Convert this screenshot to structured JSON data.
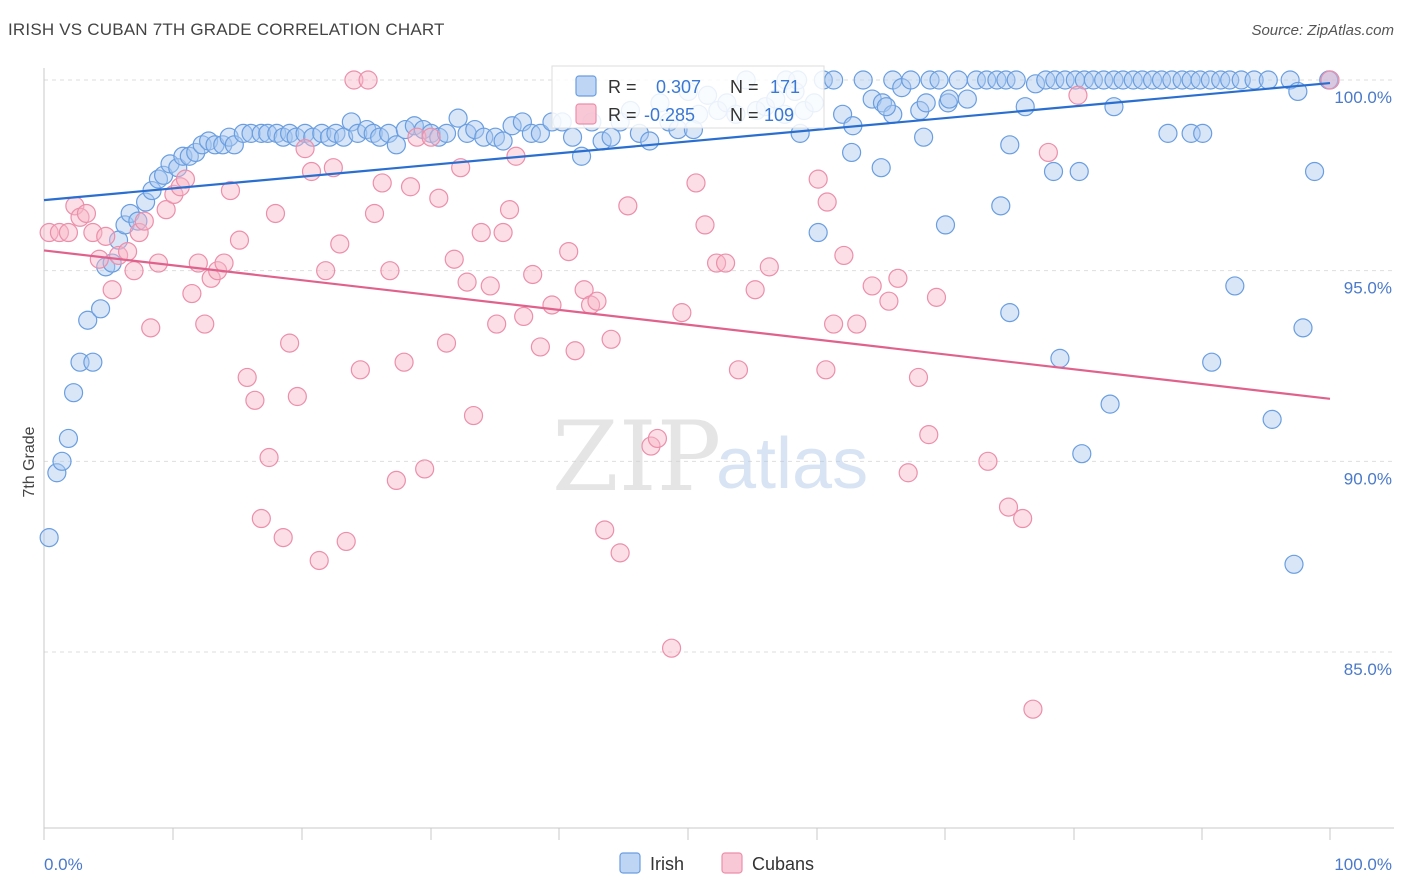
{
  "header": {
    "title": "IRISH VS CUBAN 7TH GRADE CORRELATION CHART",
    "source": "Source: ZipAtlas.com"
  },
  "watermark": {
    "zip": "ZIP",
    "atlas": "atlas"
  },
  "colors": {
    "irish_fill": "#a8c8f0",
    "irish_stroke": "#6a9ee0",
    "irish_line": "#2a6fcf",
    "cubans_fill": "#f6b6c8",
    "cubans_stroke": "#ec8fab",
    "cubans_line": "#e0628c",
    "tick_text": "#4a7ac9"
  },
  "legend_box": {
    "rows": [
      {
        "r_label": "R = ",
        "r_value": "0.307",
        "n_label": "N = ",
        "n_value": "171"
      },
      {
        "r_label": "R = ",
        "r_value": "-0.285",
        "n_label": "N = ",
        "n_value": "109"
      }
    ]
  },
  "chart_data": {
    "type": "scatter",
    "title": "IRISH VS CUBAN 7TH GRADE CORRELATION CHART",
    "xlabel": "",
    "ylabel": "7th Grade",
    "xlim": [
      0,
      100
    ],
    "ylim": [
      80.2,
      100.6
    ],
    "x_tick_labels": [
      "0.0%",
      "100.0%"
    ],
    "y_ticks": [
      85,
      90,
      95,
      100
    ],
    "y_tick_labels": [
      "85.0%",
      "90.0%",
      "95.0%",
      "100.0%"
    ],
    "grid": "horizontal dashed",
    "legend_position": "top-center and bottom",
    "series": [
      {
        "name": "Irish",
        "R": 0.307,
        "N": 171,
        "trend": {
          "x0": 0,
          "y0": 96.85,
          "x1": 100,
          "y1": 99.92
        },
        "points": [
          [
            0.4,
            88
          ],
          [
            1,
            89.7
          ],
          [
            1.4,
            90
          ],
          [
            1.9,
            90.6
          ],
          [
            2.3,
            91.8
          ],
          [
            2.8,
            92.6
          ],
          [
            3.8,
            92.6
          ],
          [
            3.4,
            93.7
          ],
          [
            4.4,
            94
          ],
          [
            4.8,
            95.1
          ],
          [
            5.3,
            95.2
          ],
          [
            5.8,
            95.8
          ],
          [
            6.3,
            96.2
          ],
          [
            6.7,
            96.5
          ],
          [
            7.3,
            96.3
          ],
          [
            7.9,
            96.8
          ],
          [
            8.4,
            97.1
          ],
          [
            8.9,
            97.4
          ],
          [
            9.3,
            97.5
          ],
          [
            9.8,
            97.8
          ],
          [
            10.4,
            97.7
          ],
          [
            10.8,
            98
          ],
          [
            11.3,
            98
          ],
          [
            11.8,
            98.1
          ],
          [
            12.3,
            98.3
          ],
          [
            12.8,
            98.4
          ],
          [
            13.3,
            98.3
          ],
          [
            13.9,
            98.3
          ],
          [
            14.4,
            98.5
          ],
          [
            14.8,
            98.3
          ],
          [
            15.5,
            98.6
          ],
          [
            16.1,
            98.6
          ],
          [
            16.9,
            98.6
          ],
          [
            17.4,
            98.6
          ],
          [
            18.1,
            98.6
          ],
          [
            18.6,
            98.5
          ],
          [
            19.1,
            98.6
          ],
          [
            19.6,
            98.5
          ],
          [
            20.3,
            98.6
          ],
          [
            20.9,
            98.5
          ],
          [
            21.6,
            98.6
          ],
          [
            22.2,
            98.5
          ],
          [
            22.7,
            98.6
          ],
          [
            23.3,
            98.5
          ],
          [
            23.9,
            98.9
          ],
          [
            24.4,
            98.6
          ],
          [
            25.1,
            98.7
          ],
          [
            25.6,
            98.6
          ],
          [
            26.1,
            98.5
          ],
          [
            26.8,
            98.6
          ],
          [
            27.4,
            98.3
          ],
          [
            28.1,
            98.7
          ],
          [
            28.8,
            98.8
          ],
          [
            29.5,
            98.7
          ],
          [
            30.1,
            98.6
          ],
          [
            30.7,
            98.5
          ],
          [
            31.3,
            98.6
          ],
          [
            32.2,
            99
          ],
          [
            32.9,
            98.6
          ],
          [
            33.5,
            98.7
          ],
          [
            34.2,
            98.5
          ],
          [
            35.1,
            98.5
          ],
          [
            35.7,
            98.4
          ],
          [
            36.4,
            98.8
          ],
          [
            37.2,
            98.9
          ],
          [
            37.9,
            98.6
          ],
          [
            38.6,
            98.6
          ],
          [
            39.5,
            98.9
          ],
          [
            40.3,
            98.9
          ],
          [
            41.1,
            98.5
          ],
          [
            41.8,
            98
          ],
          [
            42.6,
            98.9
          ],
          [
            43.4,
            98.4
          ],
          [
            44.1,
            98.5
          ],
          [
            44.8,
            98.9
          ],
          [
            45.6,
            99.2
          ],
          [
            46.3,
            98.6
          ],
          [
            47.1,
            98.4
          ],
          [
            47.9,
            99.4
          ],
          [
            48.6,
            98.9
          ],
          [
            49.3,
            98.7
          ],
          [
            50.1,
            99.7
          ],
          [
            50.9,
            99.1
          ],
          [
            51.6,
            99.6
          ],
          [
            52.4,
            99.2
          ],
          [
            53.1,
            99.4
          ],
          [
            53.8,
            99.1
          ],
          [
            54.6,
            100
          ],
          [
            55.4,
            99.2
          ],
          [
            56.1,
            99.3
          ],
          [
            56.9,
            99.5
          ],
          [
            57.7,
            100
          ],
          [
            58.4,
            99.7
          ],
          [
            59.1,
            99.2
          ],
          [
            59.9,
            99.4
          ],
          [
            60.6,
            100
          ],
          [
            61.4,
            100
          ],
          [
            62.1,
            99.1
          ],
          [
            62.9,
            98.8
          ],
          [
            63.7,
            100
          ],
          [
            64.4,
            99.5
          ],
          [
            65.2,
            99.4
          ],
          [
            66,
            100
          ],
          [
            66.7,
            99.8
          ],
          [
            67.4,
            100
          ],
          [
            68.1,
            99.2
          ],
          [
            68.9,
            100
          ],
          [
            69.6,
            100
          ],
          [
            70.3,
            99.4
          ],
          [
            71.1,
            100
          ],
          [
            71.8,
            99.5
          ],
          [
            72.5,
            100
          ],
          [
            73.3,
            100
          ],
          [
            74.1,
            100
          ],
          [
            74.8,
            100
          ],
          [
            75.6,
            100
          ],
          [
            76.3,
            99.3
          ],
          [
            77.1,
            99.9
          ],
          [
            77.9,
            100
          ],
          [
            78.6,
            100
          ],
          [
            79.4,
            100
          ],
          [
            80.2,
            100
          ],
          [
            80.9,
            100
          ],
          [
            81.6,
            100
          ],
          [
            82.4,
            100
          ],
          [
            83.2,
            100
          ],
          [
            83.9,
            100
          ],
          [
            84.7,
            100
          ],
          [
            85.4,
            100
          ],
          [
            86.2,
            100
          ],
          [
            86.9,
            100
          ],
          [
            87.7,
            100
          ],
          [
            88.5,
            100
          ],
          [
            89.2,
            100
          ],
          [
            89.9,
            100
          ],
          [
            90.7,
            100
          ],
          [
            91.5,
            100
          ],
          [
            92.2,
            100
          ],
          [
            93.1,
            100
          ],
          [
            94.1,
            100
          ],
          [
            95.2,
            100
          ],
          [
            96.9,
            100
          ],
          [
            100,
            100
          ],
          [
            50.5,
            98.7
          ],
          [
            58.8,
            98.6
          ],
          [
            62.8,
            98.1
          ],
          [
            65.1,
            97.7
          ],
          [
            70.1,
            96.2
          ],
          [
            74.4,
            96.7
          ],
          [
            75.1,
            98.3
          ],
          [
            78.5,
            97.6
          ],
          [
            80.5,
            97.6
          ],
          [
            87.4,
            98.6
          ],
          [
            75.1,
            93.9
          ],
          [
            79,
            92.7
          ],
          [
            80.7,
            90.2
          ],
          [
            82.9,
            91.5
          ],
          [
            90.8,
            92.6
          ],
          [
            92.6,
            94.6
          ],
          [
            95.5,
            91.1
          ],
          [
            97.2,
            87.3
          ],
          [
            97.9,
            93.5
          ],
          [
            98.8,
            97.6
          ],
          [
            97.5,
            99.7
          ],
          [
            89.2,
            98.6
          ],
          [
            68.4,
            98.5
          ],
          [
            90.1,
            98.6
          ],
          [
            83.2,
            99.3
          ],
          [
            66,
            99.1
          ],
          [
            57.6,
            99.1
          ],
          [
            58.6,
            100
          ],
          [
            99.9,
            100
          ],
          [
            65.5,
            99.3
          ],
          [
            70.4,
            99.5
          ],
          [
            68.6,
            99.4
          ],
          [
            60.2,
            96
          ]
        ]
      },
      {
        "name": "Cubans",
        "R": -0.285,
        "N": 109,
        "trend": {
          "x0": 0,
          "y0": 95.53,
          "x1": 100,
          "y1": 91.64
        },
        "points": [
          [
            0.4,
            96
          ],
          [
            1.2,
            96
          ],
          [
            1.9,
            96
          ],
          [
            2.4,
            96.7
          ],
          [
            2.8,
            96.4
          ],
          [
            3.3,
            96.5
          ],
          [
            3.8,
            96
          ],
          [
            4.3,
            95.3
          ],
          [
            4.8,
            95.9
          ],
          [
            5.3,
            94.5
          ],
          [
            5.8,
            95.4
          ],
          [
            6.5,
            95.5
          ],
          [
            7,
            95
          ],
          [
            7.4,
            96
          ],
          [
            7.8,
            96.3
          ],
          [
            8.3,
            93.5
          ],
          [
            8.9,
            95.2
          ],
          [
            9.5,
            96.6
          ],
          [
            10.1,
            97
          ],
          [
            10.6,
            97.2
          ],
          [
            11,
            97.4
          ],
          [
            11.5,
            94.4
          ],
          [
            12,
            95.2
          ],
          [
            12.5,
            93.6
          ],
          [
            13,
            94.8
          ],
          [
            13.5,
            95
          ],
          [
            14,
            95.2
          ],
          [
            14.5,
            97.1
          ],
          [
            15.2,
            95.8
          ],
          [
            15.8,
            92.2
          ],
          [
            16.4,
            91.6
          ],
          [
            16.9,
            88.5
          ],
          [
            17.5,
            90.1
          ],
          [
            18,
            96.5
          ],
          [
            18.6,
            88
          ],
          [
            19.1,
            93.1
          ],
          [
            19.7,
            91.7
          ],
          [
            20.3,
            98.2
          ],
          [
            20.8,
            97.6
          ],
          [
            21.4,
            87.4
          ],
          [
            21.9,
            95
          ],
          [
            22.5,
            97.7
          ],
          [
            23,
            95.7
          ],
          [
            23.5,
            87.9
          ],
          [
            24.1,
            100
          ],
          [
            24.6,
            92.4
          ],
          [
            25.2,
            100
          ],
          [
            25.7,
            96.5
          ],
          [
            26.3,
            97.3
          ],
          [
            26.9,
            95
          ],
          [
            27.4,
            89.5
          ],
          [
            28,
            92.6
          ],
          [
            28.5,
            97.2
          ],
          [
            29,
            98.5
          ],
          [
            29.6,
            89.8
          ],
          [
            30.1,
            98.5
          ],
          [
            30.7,
            96.9
          ],
          [
            31.3,
            93.1
          ],
          [
            31.9,
            95.3
          ],
          [
            32.4,
            97.7
          ],
          [
            32.9,
            94.7
          ],
          [
            33.4,
            91.2
          ],
          [
            34,
            96
          ],
          [
            34.7,
            94.6
          ],
          [
            35.2,
            93.6
          ],
          [
            35.7,
            96
          ],
          [
            36.2,
            96.6
          ],
          [
            36.7,
            98
          ],
          [
            37.3,
            93.8
          ],
          [
            38,
            94.9
          ],
          [
            38.6,
            93
          ],
          [
            39.5,
            94.1
          ],
          [
            40.8,
            95.5
          ],
          [
            41.3,
            92.9
          ],
          [
            42,
            94.5
          ],
          [
            42.5,
            94.1
          ],
          [
            43,
            94.2
          ],
          [
            43.6,
            88.2
          ],
          [
            44.1,
            93.2
          ],
          [
            44.8,
            87.6
          ],
          [
            45.4,
            96.7
          ],
          [
            47.2,
            90.4
          ],
          [
            47.7,
            90.6
          ],
          [
            48.8,
            85.1
          ],
          [
            49.6,
            93.9
          ],
          [
            50.7,
            97.3
          ],
          [
            51.4,
            96.2
          ],
          [
            52.3,
            95.2
          ],
          [
            53,
            95.2
          ],
          [
            54,
            92.4
          ],
          [
            55.3,
            94.5
          ],
          [
            56.4,
            95.1
          ],
          [
            60.2,
            97.4
          ],
          [
            60.9,
            96.8
          ],
          [
            61.4,
            93.6
          ],
          [
            62.2,
            95.4
          ],
          [
            63.2,
            93.6
          ],
          [
            64.4,
            94.6
          ],
          [
            65.7,
            94.2
          ],
          [
            66.4,
            94.8
          ],
          [
            67.2,
            89.7
          ],
          [
            68,
            92.2
          ],
          [
            68.8,
            90.7
          ],
          [
            69.4,
            94.3
          ],
          [
            73.4,
            90
          ],
          [
            75,
            88.8
          ],
          [
            76.1,
            88.5
          ],
          [
            76.9,
            83.5
          ],
          [
            78.1,
            98.1
          ],
          [
            80.4,
            99.6
          ],
          [
            100,
            100
          ],
          [
            60.8,
            92.4
          ]
        ]
      }
    ]
  },
  "bottom_legend": {
    "items": [
      "Irish",
      "Cubans"
    ]
  }
}
